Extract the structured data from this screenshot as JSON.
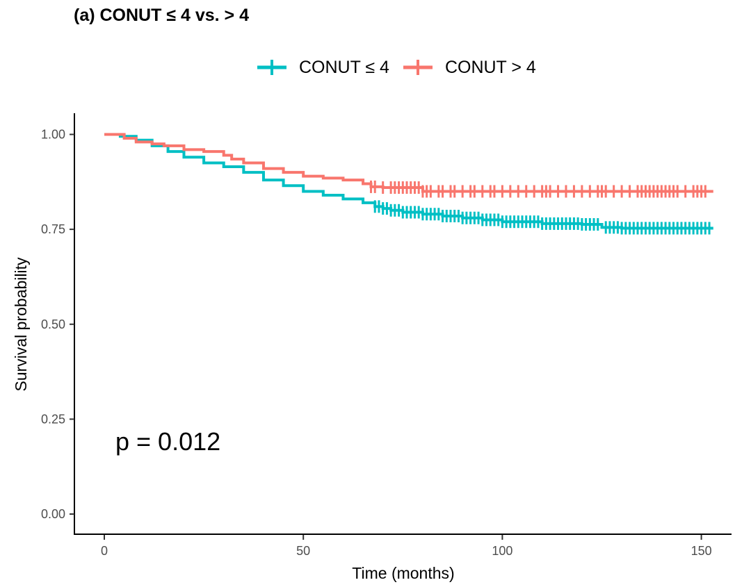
{
  "chart_data": {
    "type": "line",
    "title": "(a) CONUT ≤ 4 vs. > 4",
    "xlabel": "Time (months)",
    "ylabel": "Survival probability",
    "xlim": [
      0,
      155
    ],
    "ylim": [
      0,
      1
    ],
    "x_ticks": [
      0,
      50,
      100,
      150
    ],
    "x_tick_labels": [
      "0",
      "50",
      "100",
      "150"
    ],
    "y_ticks": [
      0,
      0.25,
      0.5,
      0.75,
      1.0
    ],
    "y_tick_labels": [
      "0.00",
      "0.25",
      "0.50",
      "0.75",
      "1.00"
    ],
    "grid": false,
    "legend_position": "top",
    "annotation": "p = 0.012",
    "series": [
      {
        "name": "CONUT ≤ 4",
        "color": "#00BFC4",
        "x": [
          0,
          4,
          8,
          12,
          16,
          20,
          25,
          30,
          35,
          40,
          45,
          50,
          55,
          60,
          65,
          68,
          70,
          72,
          75,
          80,
          85,
          90,
          95,
          100,
          110,
          120,
          125,
          130,
          140,
          153
        ],
        "y": [
          1.0,
          0.995,
          0.985,
          0.97,
          0.955,
          0.94,
          0.925,
          0.915,
          0.9,
          0.88,
          0.865,
          0.85,
          0.84,
          0.83,
          0.82,
          0.81,
          0.805,
          0.8,
          0.795,
          0.79,
          0.785,
          0.78,
          0.775,
          0.77,
          0.765,
          0.763,
          0.755,
          0.753,
          0.753,
          0.753
        ],
        "censor_x": [
          68,
          69,
          70,
          71,
          72,
          73,
          74,
          75,
          76,
          77,
          78,
          79,
          80,
          81,
          82,
          83,
          84,
          85,
          86,
          87,
          88,
          89,
          90,
          91,
          92,
          93,
          94,
          95,
          96,
          97,
          98,
          99,
          100,
          101,
          102,
          103,
          104,
          105,
          106,
          107,
          108,
          109,
          110,
          111,
          112,
          113,
          114,
          115,
          116,
          117,
          118,
          119,
          120,
          121,
          122,
          123,
          124,
          126,
          127,
          128,
          129,
          130,
          131,
          132,
          133,
          134,
          135,
          136,
          137,
          138,
          139,
          140,
          141,
          142,
          143,
          144,
          145,
          146,
          147,
          148,
          149,
          150,
          151,
          152
        ]
      },
      {
        "name": "CONUT > 4",
        "color": "#F8766D",
        "x": [
          0,
          5,
          8,
          12,
          15,
          20,
          25,
          30,
          32,
          35,
          40,
          45,
          50,
          55,
          60,
          65,
          67,
          70,
          80,
          153
        ],
        "y": [
          1.0,
          0.99,
          0.98,
          0.975,
          0.97,
          0.96,
          0.955,
          0.945,
          0.935,
          0.925,
          0.91,
          0.9,
          0.89,
          0.885,
          0.88,
          0.87,
          0.862,
          0.86,
          0.85,
          0.85
        ],
        "censor_x": [
          67,
          68,
          70,
          72,
          73,
          74,
          75,
          76,
          77,
          78,
          79,
          80,
          81,
          82,
          84,
          85,
          87,
          88,
          90,
          92,
          93,
          95,
          97,
          98,
          100,
          102,
          104,
          106,
          108,
          110,
          111,
          112,
          114,
          116,
          118,
          120,
          122,
          124,
          125,
          126,
          128,
          130,
          132,
          134,
          135,
          136,
          137,
          138,
          139,
          140,
          141,
          142,
          143,
          144,
          146,
          148,
          149,
          150,
          151
        ]
      }
    ]
  }
}
